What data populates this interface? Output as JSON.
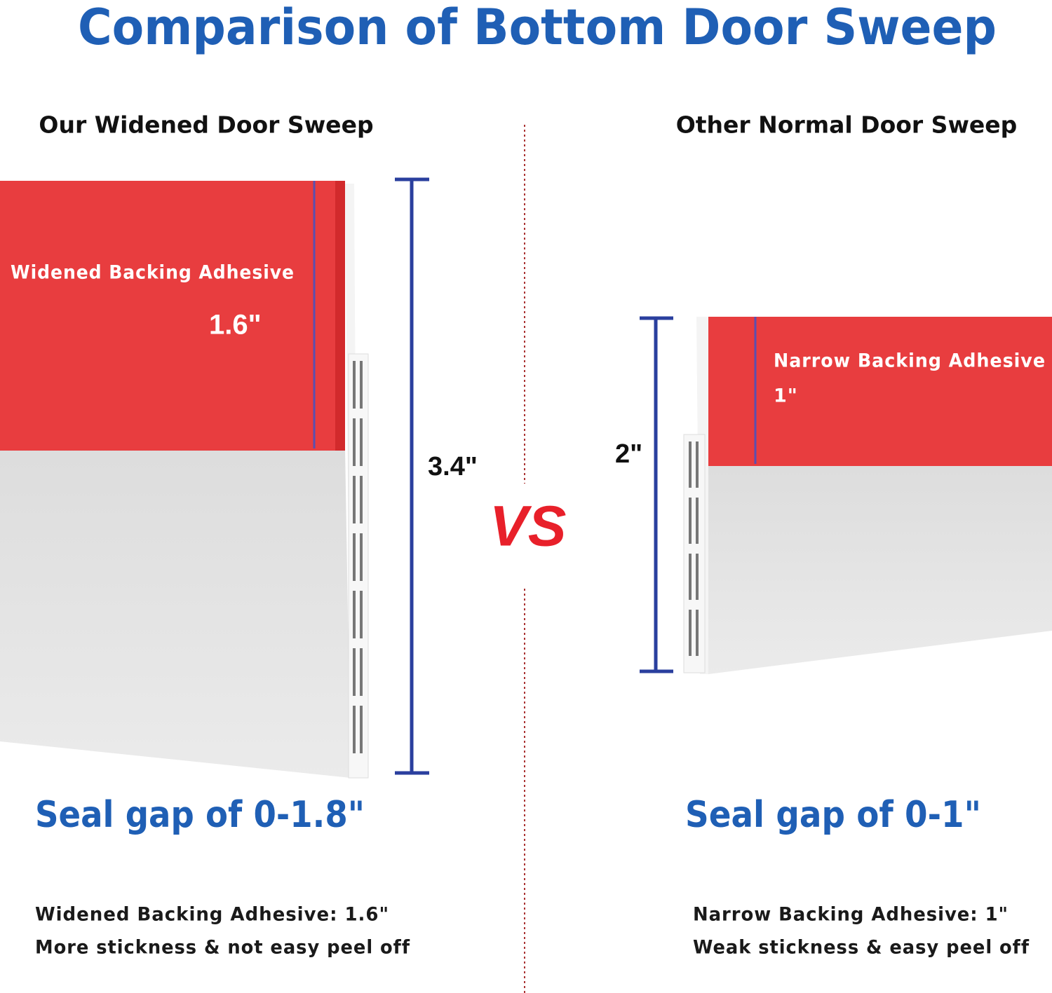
{
  "header": {
    "title": "Comparison of Bottom Door Sweep"
  },
  "left": {
    "heading": "Our Widened Door Sweep",
    "adhesive_label": "Widened Backing Adhesive",
    "adhesive_size": "1.6\"",
    "total_height": "3.4\"",
    "seal_gap": "Seal gap of 0-1.8\"",
    "notes": [
      "Widened Backing Adhesive:  1.6\"",
      "More stickness & not easy peel off"
    ]
  },
  "divider": {
    "label": "VS"
  },
  "right": {
    "heading": "Other Normal Door Sweep",
    "adhesive_label": "Narrow Backing Adhesive",
    "adhesive_size": "1\"",
    "total_height": "2\"",
    "seal_gap": "Seal gap of 0-1\"",
    "notes": [
      "Narrow Backing Adhesive: 1\"",
      "Weak stickness & easy peel off"
    ]
  }
}
